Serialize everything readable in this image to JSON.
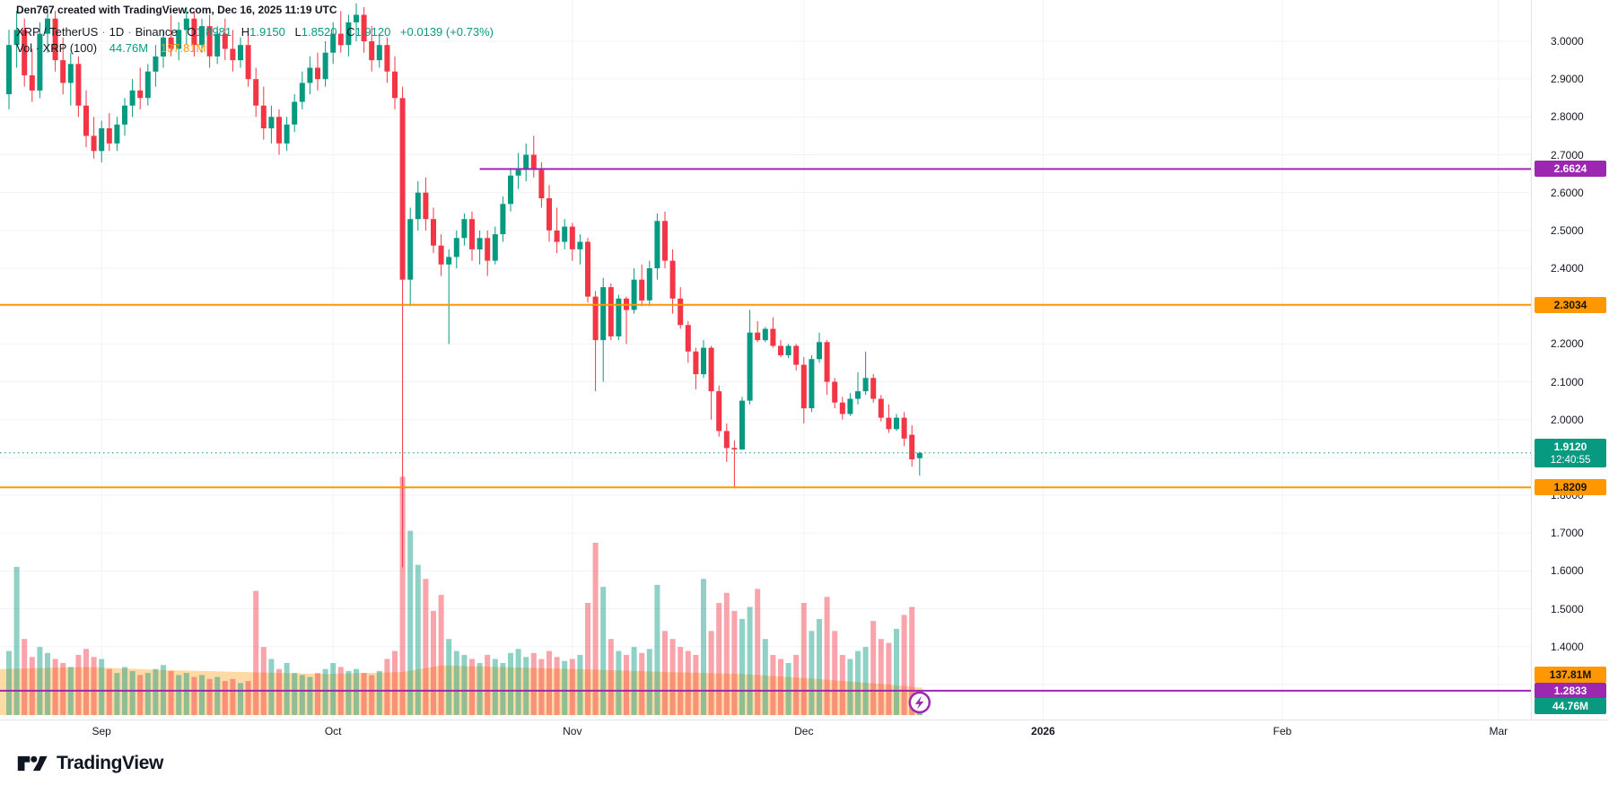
{
  "attribution": "Den767 created with TradingView.com, Dec 16, 2025 11:19 UTC",
  "legend": {
    "symbol": "XRP / TetherUS",
    "sep": "·",
    "interval": "1D",
    "exchange": "Binance",
    "o_label": "O",
    "o": "1.8981",
    "h_label": "H",
    "h": "1.9150",
    "l_label": "L",
    "l": "1.8520",
    "c_label": "C",
    "c": "1.9120",
    "change": "+0.0139 (+0.73%)"
  },
  "volume_legend": {
    "label": "Vol · XRP (100)",
    "current": "44.76M",
    "ma": "137.81M"
  },
  "footer": {
    "brand": "TradingView"
  },
  "colors": {
    "up": "#089981",
    "down": "#f23645",
    "vol_up": "rgba(8,153,129,0.45)",
    "vol_down": "rgba(242,54,69,0.45)",
    "ma_fill": "rgba(255,167,38,0.42)",
    "orange": "#ff9800",
    "purple": "#9c27b0",
    "teal": "#089981",
    "text": "#131722",
    "grid": "#f0f3fa",
    "axis_border": "#e0e3eb",
    "badge_dark_text": "#1c1307",
    "badge_light_text": "#ffffff"
  },
  "chart_data": {
    "type": "candlestick",
    "title": "XRP / TetherUS · 1D · Binance",
    "ylim": [
      1.25,
      3.11
    ],
    "grid": true,
    "price_axis_ticks": [
      "3.0000",
      "2.9000",
      "2.8000",
      "2.7000",
      "2.6000",
      "2.5000",
      "2.4000",
      "2.3000",
      "2.2000",
      "2.1000",
      "2.0000",
      "1.8000",
      "1.7000",
      "1.6000",
      "1.5000",
      "1.4000"
    ],
    "price_axis_tick_values": [
      3.0,
      2.9,
      2.8,
      2.7,
      2.6,
      2.5,
      2.4,
      2.3,
      2.2,
      2.1,
      2.0,
      1.8,
      1.7,
      1.6,
      1.5,
      1.4
    ],
    "grid_price_values": [
      3.0,
      2.9,
      2.8,
      2.7,
      2.6,
      2.5,
      2.4,
      2.3,
      2.2,
      2.1,
      2.0,
      1.9,
      1.8,
      1.7,
      1.6,
      1.5,
      1.4,
      1.3
    ],
    "time_ticks": [
      {
        "label": "Sep",
        "index": 12,
        "em": false
      },
      {
        "label": "Oct",
        "index": 42,
        "em": false
      },
      {
        "label": "Nov",
        "index": 73,
        "em": false
      },
      {
        "label": "Dec",
        "index": 103,
        "em": false
      },
      {
        "label": "2026",
        "index": 134,
        "em": true
      },
      {
        "label": "Feb",
        "index": 165,
        "em": false
      },
      {
        "label": "Mar",
        "index": 193,
        "em": false
      }
    ],
    "levels": [
      {
        "price": 2.6624,
        "label": "2.6624",
        "color": "#9c27b0",
        "text_color": "#ffffff",
        "start_index": 61,
        "full_width": false,
        "icon": false
      },
      {
        "price": 2.3034,
        "label": "2.3034",
        "color": "#ff9800",
        "text_color": "#1c1307",
        "start_index": 0,
        "full_width": true,
        "icon": false
      },
      {
        "price": 1.8209,
        "label": "1.8209",
        "color": "#ff9800",
        "text_color": "#1c1307",
        "start_index": 0,
        "full_width": true,
        "icon": false
      },
      {
        "price": 1.2833,
        "label": "1.2833",
        "color": "#9c27b0",
        "text_color": "#ffffff",
        "start_index": 0,
        "full_width": true,
        "icon": true,
        "icon_index": 118
      }
    ],
    "current_price": {
      "value": "1.9120",
      "price": 1.912,
      "countdown": "12:40:55",
      "color": "#089981"
    },
    "volume_badges": [
      {
        "label": "137.81M",
        "color": "#ff9800",
        "text_color": "#1c1307",
        "y": 752
      },
      {
        "label": "44.76M",
        "color": "#089981",
        "text_color": "#ffffff",
        "y": 787
      }
    ],
    "candles": [
      [
        2.86,
        3.03,
        2.82,
        2.99
      ],
      [
        2.99,
        3.08,
        2.93,
        3.03
      ],
      [
        3.03,
        3.06,
        2.88,
        2.91
      ],
      [
        2.91,
        2.98,
        2.84,
        2.87
      ],
      [
        2.87,
        3.05,
        2.85,
        3.02
      ],
      [
        3.02,
        3.09,
        2.97,
        3.06
      ],
      [
        3.06,
        3.08,
        2.92,
        2.95
      ],
      [
        2.95,
        3.01,
        2.86,
        2.89
      ],
      [
        2.89,
        2.97,
        2.83,
        2.94
      ],
      [
        2.94,
        2.96,
        2.8,
        2.83
      ],
      [
        2.83,
        2.87,
        2.72,
        2.75
      ],
      [
        2.75,
        2.8,
        2.69,
        2.71
      ],
      [
        2.71,
        2.79,
        2.68,
        2.77
      ],
      [
        2.77,
        2.81,
        2.71,
        2.73
      ],
      [
        2.73,
        2.8,
        2.71,
        2.78
      ],
      [
        2.78,
        2.85,
        2.75,
        2.83
      ],
      [
        2.83,
        2.9,
        2.8,
        2.87
      ],
      [
        2.87,
        2.93,
        2.82,
        2.85
      ],
      [
        2.85,
        2.94,
        2.83,
        2.92
      ],
      [
        2.92,
        2.99,
        2.88,
        2.96
      ],
      [
        2.96,
        3.03,
        2.93,
        3.01
      ],
      [
        3.01,
        3.07,
        2.96,
        2.98
      ],
      [
        2.98,
        3.05,
        2.95,
        3.03
      ],
      [
        3.03,
        3.09,
        2.99,
        3.06
      ],
      [
        3.06,
        3.08,
        2.96,
        2.99
      ],
      [
        2.99,
        3.06,
        2.97,
        3.04
      ],
      [
        3.04,
        3.07,
        2.93,
        2.96
      ],
      [
        2.96,
        3.04,
        2.94,
        3.02
      ],
      [
        3.02,
        3.06,
        2.95,
        2.98
      ],
      [
        2.98,
        3.03,
        2.92,
        2.95
      ],
      [
        2.95,
        3.01,
        2.93,
        2.99
      ],
      [
        2.99,
        3.02,
        2.88,
        2.9
      ],
      [
        2.9,
        2.93,
        2.8,
        2.83
      ],
      [
        2.83,
        2.88,
        2.74,
        2.77
      ],
      [
        2.77,
        2.83,
        2.73,
        2.8
      ],
      [
        2.8,
        2.82,
        2.7,
        2.73
      ],
      [
        2.73,
        2.8,
        2.71,
        2.78
      ],
      [
        2.78,
        2.86,
        2.76,
        2.84
      ],
      [
        2.84,
        2.92,
        2.82,
        2.89
      ],
      [
        2.89,
        2.96,
        2.86,
        2.93
      ],
      [
        2.93,
        2.97,
        2.87,
        2.9
      ],
      [
        2.9,
        3.0,
        2.88,
        2.97
      ],
      [
        2.97,
        3.05,
        2.94,
        3.02
      ],
      [
        3.02,
        3.08,
        2.97,
        2.99
      ],
      [
        2.99,
        3.07,
        2.96,
        3.05
      ],
      [
        3.05,
        3.1,
        3.0,
        3.07
      ],
      [
        3.07,
        3.09,
        2.97,
        3.0
      ],
      [
        3.0,
        3.04,
        2.92,
        2.95
      ],
      [
        2.95,
        3.02,
        2.93,
        2.99
      ],
      [
        2.99,
        3.01,
        2.89,
        2.92
      ],
      [
        2.92,
        2.96,
        2.82,
        2.85
      ],
      [
        2.85,
        2.88,
        1.61,
        2.37
      ],
      [
        2.37,
        2.56,
        2.3,
        2.53
      ],
      [
        2.53,
        2.63,
        2.5,
        2.6
      ],
      [
        2.6,
        2.64,
        2.5,
        2.53
      ],
      [
        2.53,
        2.56,
        2.44,
        2.46
      ],
      [
        2.46,
        2.49,
        2.38,
        2.41
      ],
      [
        2.41,
        2.45,
        2.2,
        2.43
      ],
      [
        2.43,
        2.5,
        2.4,
        2.48
      ],
      [
        2.48,
        2.545,
        2.46,
        2.53
      ],
      [
        2.53,
        2.55,
        2.42,
        2.45
      ],
      [
        2.45,
        2.5,
        2.41,
        2.48
      ],
      [
        2.48,
        2.5,
        2.38,
        2.42
      ],
      [
        2.42,
        2.51,
        2.41,
        2.49
      ],
      [
        2.49,
        2.59,
        2.47,
        2.57
      ],
      [
        2.57,
        2.665,
        2.55,
        2.645
      ],
      [
        2.645,
        2.705,
        2.61,
        2.66
      ],
      [
        2.66,
        2.73,
        2.63,
        2.7
      ],
      [
        2.7,
        2.75,
        2.64,
        2.66
      ],
      [
        2.66,
        2.68,
        2.56,
        2.585
      ],
      [
        2.585,
        2.62,
        2.47,
        2.5
      ],
      [
        2.5,
        2.56,
        2.44,
        2.47
      ],
      [
        2.47,
        2.53,
        2.45,
        2.51
      ],
      [
        2.51,
        2.52,
        2.42,
        2.45
      ],
      [
        2.45,
        2.49,
        2.41,
        2.47
      ],
      [
        2.47,
        2.48,
        2.31,
        2.325
      ],
      [
        2.325,
        2.34,
        2.075,
        2.21
      ],
      [
        2.21,
        2.375,
        2.1,
        2.35
      ],
      [
        2.35,
        2.36,
        2.21,
        2.22
      ],
      [
        2.22,
        2.33,
        2.21,
        2.32
      ],
      [
        2.32,
        2.325,
        2.2,
        2.29
      ],
      [
        2.29,
        2.4,
        2.28,
        2.37
      ],
      [
        2.37,
        2.41,
        2.3,
        2.315
      ],
      [
        2.315,
        2.42,
        2.3,
        2.4
      ],
      [
        2.4,
        2.545,
        2.37,
        2.525
      ],
      [
        2.525,
        2.55,
        2.4,
        2.42
      ],
      [
        2.42,
        2.45,
        2.28,
        2.32
      ],
      [
        2.32,
        2.35,
        2.24,
        2.25
      ],
      [
        2.25,
        2.26,
        2.15,
        2.18
      ],
      [
        2.18,
        2.19,
        2.08,
        2.12
      ],
      [
        2.12,
        2.21,
        2.11,
        2.19
      ],
      [
        2.19,
        2.195,
        2.0,
        2.075
      ],
      [
        2.075,
        2.09,
        1.955,
        1.97
      ],
      [
        1.97,
        1.99,
        1.888,
        1.925
      ],
      [
        1.925,
        1.945,
        1.8215,
        1.921
      ],
      [
        1.921,
        2.06,
        1.92,
        2.05
      ],
      [
        2.05,
        2.29,
        2.04,
        2.23
      ],
      [
        2.23,
        2.26,
        2.205,
        2.21
      ],
      [
        2.21,
        2.245,
        2.205,
        2.24
      ],
      [
        2.24,
        2.27,
        2.19,
        2.195
      ],
      [
        2.195,
        2.21,
        2.165,
        2.17
      ],
      [
        2.17,
        2.2,
        2.163,
        2.195
      ],
      [
        2.195,
        2.2,
        2.13,
        2.145
      ],
      [
        2.145,
        2.165,
        1.99,
        2.03
      ],
      [
        2.03,
        2.17,
        2.02,
        2.16
      ],
      [
        2.16,
        2.23,
        2.15,
        2.205
      ],
      [
        2.205,
        2.21,
        2.065,
        2.1
      ],
      [
        2.1,
        2.11,
        2.03,
        2.045
      ],
      [
        2.045,
        2.06,
        2.0,
        2.015
      ],
      [
        2.015,
        2.07,
        2.01,
        2.055
      ],
      [
        2.055,
        2.125,
        2.04,
        2.075
      ],
      [
        2.075,
        2.18,
        2.065,
        2.11
      ],
      [
        2.11,
        2.12,
        2.045,
        2.055
      ],
      [
        2.055,
        2.065,
        1.995,
        2.005
      ],
      [
        2.005,
        2.04,
        1.965,
        1.975
      ],
      [
        1.975,
        2.015,
        1.97,
        2.005
      ],
      [
        2.005,
        2.02,
        1.93,
        1.95
      ],
      [
        1.96,
        1.985,
        1.876,
        1.895
      ],
      [
        1.8981,
        1.915,
        1.852,
        1.912
      ]
    ],
    "volumes_m": [
      320,
      740,
      380,
      290,
      340,
      310,
      280,
      260,
      240,
      300,
      330,
      290,
      280,
      230,
      210,
      240,
      220,
      200,
      210,
      230,
      250,
      220,
      200,
      210,
      190,
      200,
      180,
      190,
      170,
      180,
      160,
      170,
      620,
      340,
      280,
      230,
      260,
      210,
      200,
      190,
      210,
      230,
      260,
      240,
      220,
      230,
      210,
      200,
      220,
      280,
      320,
      1190,
      920,
      750,
      680,
      520,
      600,
      380,
      320,
      300,
      280,
      260,
      300,
      280,
      260,
      310,
      330,
      290,
      310,
      280,
      320,
      290,
      270,
      280,
      300,
      560,
      860,
      640,
      380,
      320,
      300,
      340,
      310,
      330,
      650,
      420,
      380,
      340,
      320,
      300,
      680,
      420,
      560,
      610,
      520,
      480,
      540,
      630,
      380,
      300,
      280,
      260,
      300,
      560,
      420,
      480,
      590,
      420,
      300,
      280,
      320,
      340,
      470,
      380,
      360,
      430,
      500,
      540,
      44.76
    ],
    "volume_ma_m": [
      [
        0,
        230
      ],
      [
        10,
        240
      ],
      [
        20,
        225
      ],
      [
        30,
        215
      ],
      [
        41,
        205
      ],
      [
        51,
        215
      ],
      [
        56,
        248
      ],
      [
        65,
        238
      ],
      [
        75,
        228
      ],
      [
        85,
        215
      ],
      [
        95,
        205
      ],
      [
        103,
        185
      ],
      [
        110,
        165
      ],
      [
        118,
        138
      ]
    ]
  }
}
